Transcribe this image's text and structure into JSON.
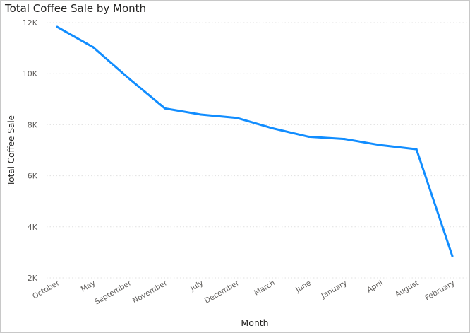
{
  "chart_data": {
    "type": "line",
    "title": "Total Coffee Sale by Month",
    "xlabel": "Month",
    "ylabel": "Total Coffee Sale",
    "categories": [
      "October",
      "May",
      "September",
      "November",
      "July",
      "December",
      "March",
      "June",
      "January",
      "April",
      "August",
      "February"
    ],
    "values": [
      11830,
      11040,
      9810,
      8640,
      8400,
      8270,
      7860,
      7530,
      7440,
      7200,
      7040,
      2850
    ],
    "y_ticks": [
      2000,
      4000,
      6000,
      8000,
      10000,
      12000
    ],
    "y_tick_labels": [
      "2K",
      "4K",
      "6K",
      "8K",
      "10K",
      "12K"
    ],
    "ylim": [
      2000,
      12000
    ],
    "grid": "horizontal dotted",
    "line_color": "#118DFF",
    "grid_color": "#e1e1e1",
    "tick_color": "#605e5c"
  }
}
